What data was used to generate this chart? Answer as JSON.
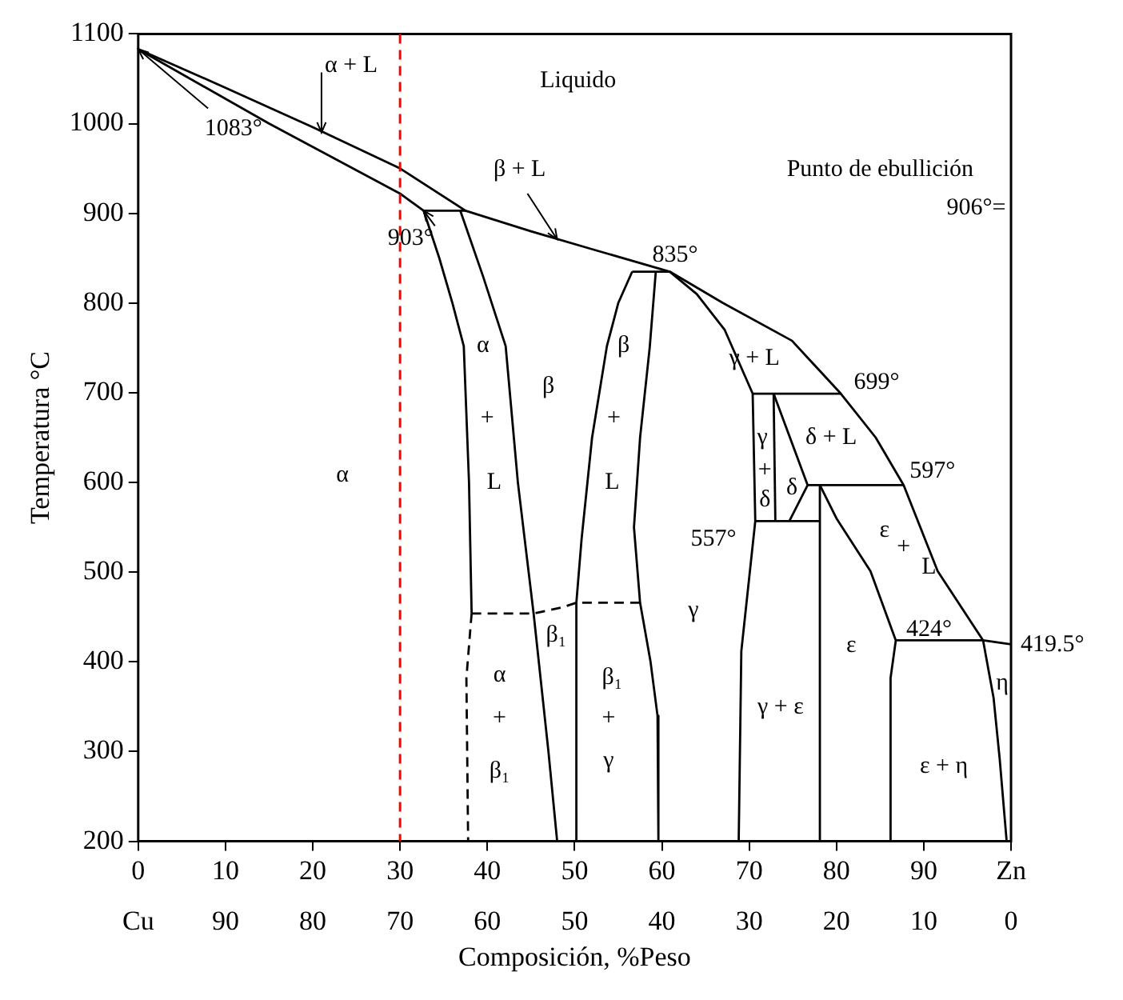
{
  "chart_data": {
    "type": "line",
    "xlabel": "Composición, %Peso",
    "ylabel": "Temperatura °C",
    "xlim": [
      0,
      100
    ],
    "xticks": [
      0,
      10,
      20,
      30,
      40,
      50,
      60,
      70,
      80,
      90,
      {
        "value": 100,
        "label": "Zn"
      }
    ],
    "x2lim": [
      100,
      0
    ],
    "x2ticks": [
      {
        "value": 100,
        "label": "Cu"
      },
      90,
      80,
      70,
      60,
      50,
      40,
      30,
      20,
      10,
      0
    ],
    "ylim": [
      200,
      1100
    ],
    "yticks": [
      200,
      300,
      400,
      500,
      600,
      700,
      800,
      900,
      1000,
      1100
    ],
    "grid": false,
    "legend": false,
    "marker": "none",
    "line_style": "solid",
    "ref_lines": [
      {
        "axis": "x",
        "value": 30,
        "color": "#ff0000",
        "line_style": "dashed"
      }
    ],
    "annotations": [
      {
        "text": "α + L",
        "x": 21,
        "y": 990
      },
      "Liquido",
      {
        "text": "1083°",
        "x": 0,
        "y": 1083
      },
      {
        "text": "β + L",
        "x": 48,
        "y": 871
      },
      "Punto de ebullición",
      "906°=",
      {
        "text": "903°",
        "x": 32.7,
        "y": 903
      },
      "835°",
      "α",
      "+",
      "L",
      "β",
      "β",
      "+",
      "L",
      "α",
      "γ + L",
      "699°",
      "δ + L",
      "597°",
      "γ",
      "+",
      "δ",
      "δ",
      "557°",
      "ε",
      "+",
      "L",
      "424°",
      "419.5°",
      "γ",
      "β₁",
      "α",
      "+",
      "β₁",
      "β₁",
      "+",
      "γ",
      "γ + ε",
      "ε",
      "ε + η",
      "η"
    ],
    "series": [
      {
        "color": "#000000",
        "x": [
          0,
          10,
          20,
          30,
          37.5,
          45,
          52,
          60.9,
          67,
          74.9,
          80.5,
          84.5,
          87.7,
          91.6,
          96.8,
          100
        ],
        "values": [
          1083,
          1040,
          996,
          950,
          903,
          880,
          860,
          835,
          800,
          758,
          699,
          650,
          597,
          501,
          424,
          419.5
        ]
      },
      {
        "color": "#000000",
        "x": [
          0,
          15,
          30,
          32.7
        ],
        "values": [
          1083,
          1000,
          922,
          903
        ]
      },
      {
        "color": "#000000",
        "x": [
          32.7,
          37.5
        ],
        "values": [
          903,
          903
        ]
      },
      {
        "color": "#000000",
        "x": [
          32.7,
          34.5,
          36,
          37.3,
          37.9,
          38.2
        ],
        "values": [
          903,
          850,
          800,
          752,
          600,
          454
        ]
      },
      {
        "color": "#000000",
        "line_style": "dashed",
        "x": [
          38.2,
          37.6,
          37.8
        ],
        "values": [
          454,
          382,
          200
        ]
      },
      {
        "color": "#000000",
        "x": [
          36.9,
          39.5,
          42.1,
          43.5,
          45.3,
          47,
          48
        ],
        "values": [
          903,
          830,
          752,
          600,
          454,
          300,
          200
        ]
      },
      {
        "color": "#000000",
        "x": [
          56.6,
          55,
          53.7,
          52,
          50.8,
          50.2,
          50.2
        ],
        "values": [
          835,
          800,
          752,
          650,
          537,
          466,
          200
        ]
      },
      {
        "color": "#000000",
        "x": [
          56.6,
          60.9
        ],
        "values": [
          835,
          835
        ]
      },
      {
        "color": "#000000",
        "x": [
          59.3,
          58.6,
          57.5,
          56.8,
          57.5,
          58.7,
          59.5,
          59.6
        ],
        "values": [
          835,
          750,
          650,
          550,
          466,
          400,
          340,
          200
        ]
      },
      {
        "color": "#000000",
        "x": [
          60.9,
          64,
          67.2,
          70.4,
          70.7,
          69.1,
          68.8
        ],
        "values": [
          835,
          810,
          770,
          699,
          557,
          412,
          200
        ]
      },
      {
        "color": "#000000",
        "x": [
          70.4,
          80.5
        ],
        "values": [
          699,
          699
        ]
      },
      {
        "color": "#000000",
        "x": [
          72.8,
          73
        ],
        "values": [
          699,
          557
        ]
      },
      {
        "color": "#000000",
        "x": [
          72.8,
          76.7,
          74.6
        ],
        "values": [
          699,
          597,
          557
        ]
      },
      {
        "color": "#000000",
        "x": [
          70.7,
          78.1
        ],
        "values": [
          557,
          557
        ]
      },
      {
        "color": "#000000",
        "x": [
          76.7,
          87.7
        ],
        "values": [
          597,
          597
        ]
      },
      {
        "color": "#000000",
        "x": [
          78.1,
          78.1
        ],
        "values": [
          597,
          200
        ]
      },
      {
        "color": "#000000",
        "x": [
          78.1,
          80,
          83.9,
          86.8,
          86.2,
          86.2
        ],
        "values": [
          597,
          560,
          501,
          424,
          382,
          200
        ]
      },
      {
        "color": "#000000",
        "x": [
          86.8,
          96.8,
          98,
          98.7,
          99.5
        ],
        "values": [
          424,
          424,
          360,
          292,
          200
        ]
      },
      {
        "color": "#000000",
        "line_style": "dashed",
        "x": [
          38.2,
          45.3,
          48.7,
          50.2,
          57.5
        ],
        "values": [
          454,
          454,
          461,
          466,
          466
        ]
      }
    ]
  }
}
